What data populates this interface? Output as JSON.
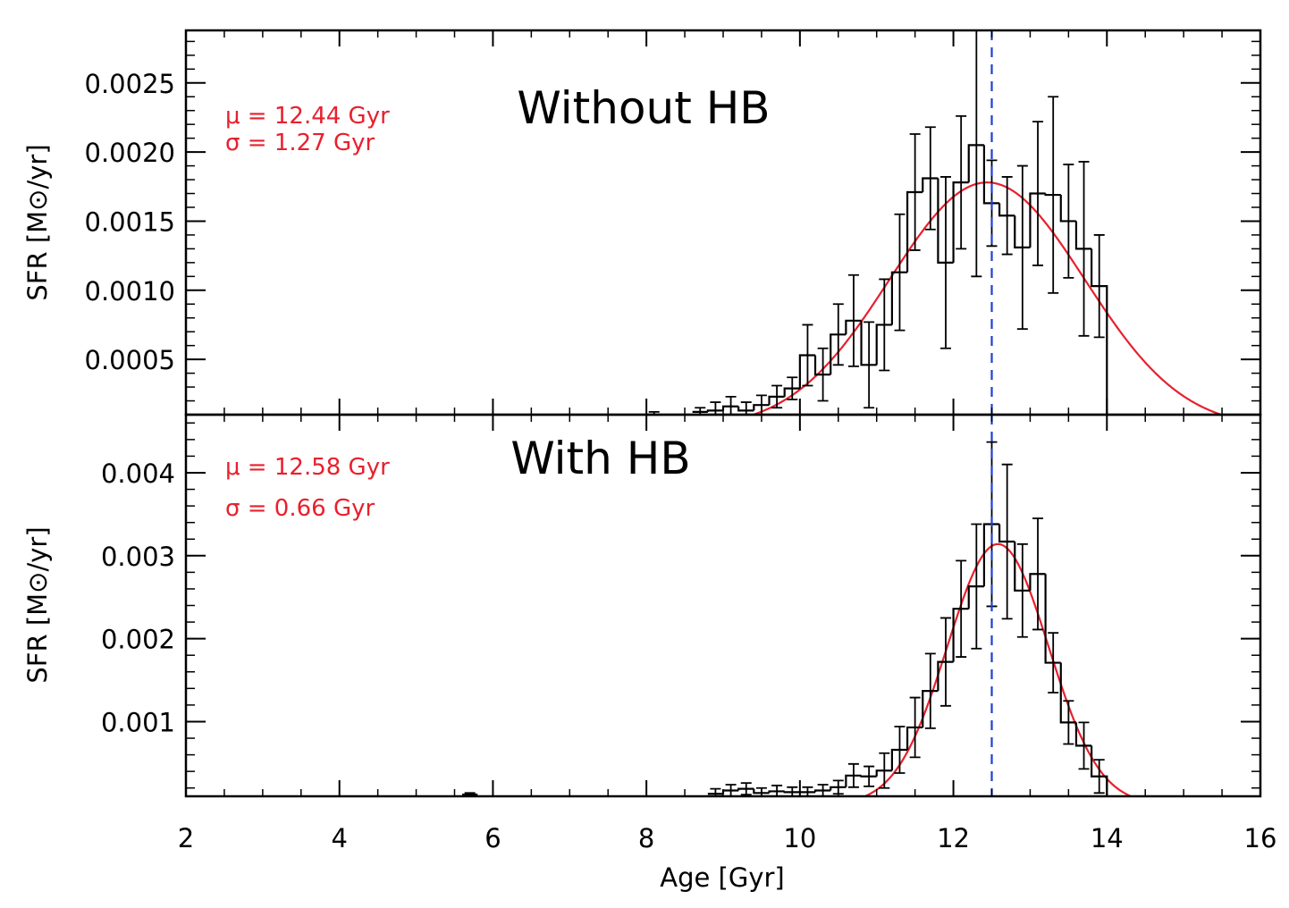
{
  "figure": {
    "xlabel": "Age [Gyr]",
    "xlim": [
      2,
      16
    ],
    "xticks": [
      "2",
      "4",
      "6",
      "8",
      "10",
      "12",
      "14",
      "16"
    ],
    "reference_line_age": 12.5,
    "colors": {
      "histogram": "#000000",
      "fit": "#e8202e",
      "reference": "#1f3fd6",
      "annotation": "#e8202e"
    }
  },
  "chart_data": [
    {
      "type": "histogram",
      "panel": "top",
      "title": "Without HB",
      "ylabel": "SFR [M⊙/yr]",
      "ylim": [
        0.0001,
        0.00288
      ],
      "yticks": [
        "0.0005",
        "0.0010",
        "0.0015",
        "0.0020",
        "0.0025"
      ],
      "annotations": [
        "μ = 12.44 Gyr",
        "σ = 1.27 Gyr"
      ],
      "fit": {
        "mu": 12.44,
        "sigma": 1.27,
        "amplitude": 0.00178
      },
      "bin_width": 0.2,
      "bin_starts": [
        8.0,
        8.6,
        8.8,
        9.0,
        9.2,
        9.4,
        9.6,
        9.8,
        10.0,
        10.2,
        10.4,
        10.6,
        10.8,
        11.0,
        11.2,
        11.4,
        11.6,
        11.8,
        12.0,
        12.2,
        12.4,
        12.6,
        12.8,
        13.0,
        13.2,
        13.4,
        13.6,
        13.8
      ],
      "values": [
        0.0001,
        0.00012,
        0.00013,
        0.00016,
        0.00013,
        0.00017,
        0.00023,
        0.00029,
        0.00053,
        0.00039,
        0.00068,
        0.00078,
        0.00046,
        0.00075,
        0.00113,
        0.00171,
        0.00181,
        0.0012,
        0.00178,
        0.00205,
        0.00163,
        0.00154,
        0.00131,
        0.0017,
        0.00169,
        0.0015,
        0.0013,
        0.00103
      ],
      "errors": [
        2e-05,
        3e-05,
        6e-05,
        7e-05,
        6e-05,
        7e-05,
        8e-05,
        8e-05,
        0.00022,
        0.00019,
        0.00022,
        0.00033,
        0.00031,
        0.00033,
        0.00042,
        0.00042,
        0.00037,
        0.00062,
        0.00048,
        0.00095,
        0.00031,
        0.00028,
        0.00059,
        0.00052,
        0.00071,
        0.00041,
        0.00063,
        0.00037
      ]
    },
    {
      "type": "histogram",
      "panel": "bottom",
      "title": "With HB",
      "ylabel": "SFR [M⊙/yr]",
      "ylim": [
        0.0001,
        0.0047
      ],
      "yticks": [
        "0.001",
        "0.002",
        "0.003",
        "0.004"
      ],
      "annotations": [
        "μ = 12.58 Gyr",
        "σ = 0.66 Gyr"
      ],
      "fit": {
        "mu": 12.58,
        "sigma": 0.66,
        "amplitude": 0.00314
      },
      "bin_width": 0.2,
      "bin_starts": [
        5.6,
        8.8,
        9.0,
        9.2,
        9.4,
        9.6,
        9.8,
        10.0,
        10.2,
        10.4,
        10.6,
        10.8,
        11.0,
        11.2,
        11.4,
        11.6,
        11.8,
        12.0,
        12.2,
        12.4,
        12.6,
        12.8,
        13.0,
        13.2,
        13.4,
        13.6,
        13.8
      ],
      "values": [
        0.00012,
        0.00013,
        0.00017,
        0.00019,
        0.00014,
        0.00016,
        0.00015,
        0.00015,
        0.00017,
        0.00021,
        0.00035,
        0.00034,
        0.00041,
        0.00066,
        0.00093,
        0.00137,
        0.00172,
        0.00236,
        0.00263,
        0.00338,
        0.00317,
        0.00258,
        0.00278,
        0.00171,
        0.00099,
        0.00071,
        0.00034
      ],
      "errors": [
        2e-05,
        6e-05,
        7e-05,
        7e-05,
        6e-05,
        7e-05,
        6e-05,
        6e-05,
        7e-05,
        8e-05,
        0.00014,
        0.00012,
        0.00021,
        0.00028,
        0.00036,
        0.00045,
        0.00053,
        0.00058,
        0.00075,
        0.00099,
        0.00093,
        0.00056,
        0.00067,
        0.00036,
        0.00026,
        0.00028,
        0.0002
      ]
    }
  ]
}
